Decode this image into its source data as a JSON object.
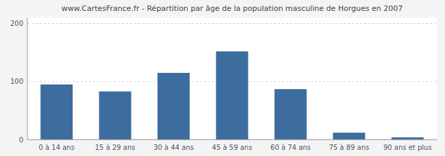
{
  "chart_data": {
    "type": "bar",
    "title": "www.CartesFrance.fr - Répartition par âge de la population masculine de Horgues en 2007",
    "categories": [
      "0 à 14 ans",
      "15 à 29 ans",
      "30 à 44 ans",
      "45 à 59 ans",
      "60 à 74 ans",
      "75 à 89 ans",
      "90 ans et plus"
    ],
    "values": [
      95,
      83,
      115,
      152,
      87,
      12,
      4
    ],
    "color": "#3d6d9e",
    "ylim": [
      0,
      210
    ],
    "yticks": [
      0,
      100,
      200
    ],
    "grid": true
  }
}
